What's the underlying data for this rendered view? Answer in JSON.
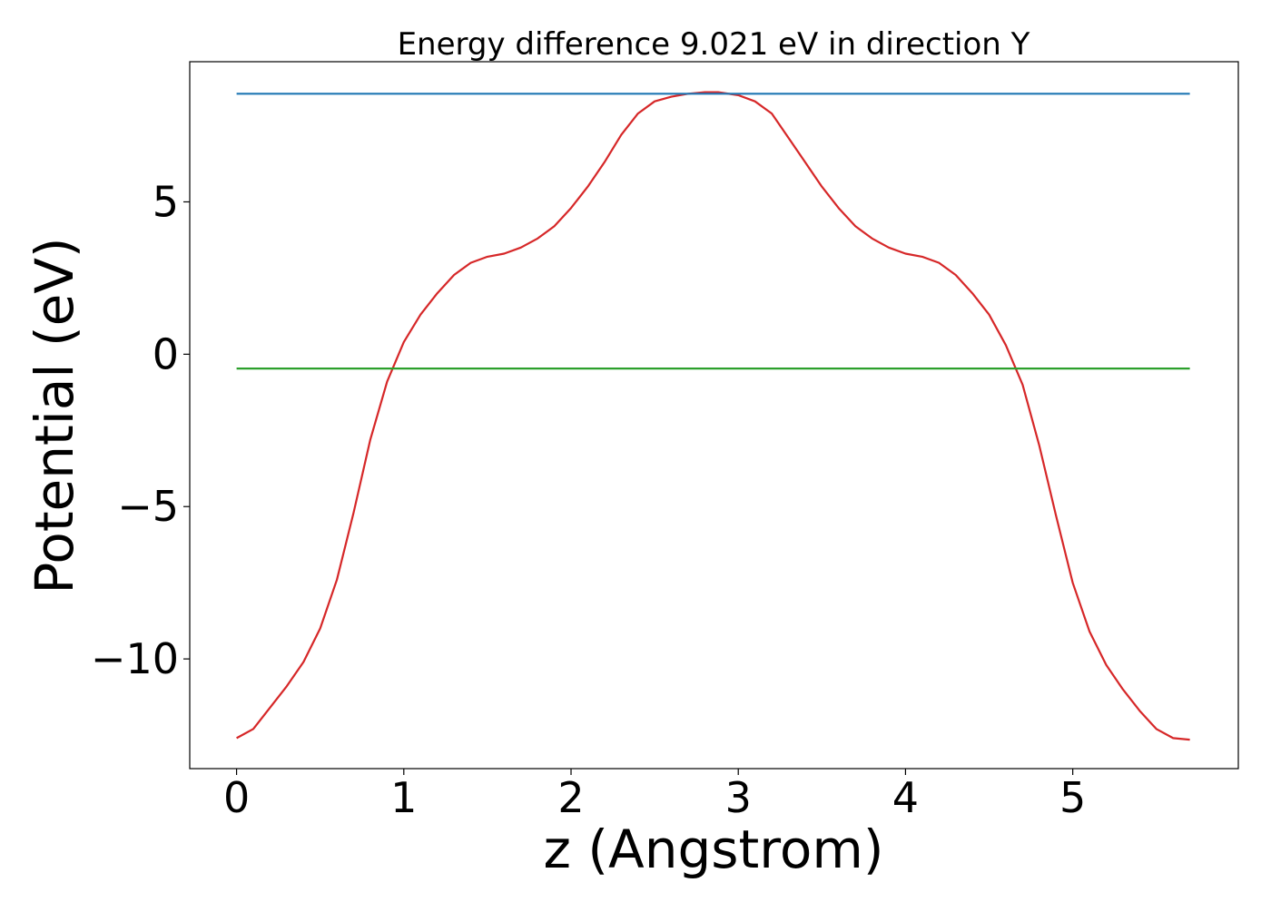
{
  "chart_data": {
    "type": "line",
    "title": "Energy difference 9.021 eV in direction Y",
    "xlabel": "z (Angstrom)",
    "ylabel": "Potential (eV)",
    "xlim": [
      -0.28,
      5.99
    ],
    "ylim": [
      -13.6,
      9.6
    ],
    "xticks": [
      0,
      1,
      2,
      3,
      4,
      5
    ],
    "xtick_labels": [
      "0",
      "1",
      "2",
      "3",
      "4",
      "5"
    ],
    "yticks": [
      -10,
      -5,
      0,
      5
    ],
    "ytick_labels": [
      "−10",
      "−5",
      "0",
      "5"
    ],
    "grid": false,
    "legend": "none",
    "series": [
      {
        "color": "#d62728",
        "x": [
          0,
          0.1,
          0.2,
          0.3,
          0.4,
          0.5,
          0.6,
          0.7,
          0.8,
          0.9,
          1.0,
          1.1,
          1.2,
          1.3,
          1.4,
          1.5,
          1.6,
          1.7,
          1.8,
          1.9,
          2.0,
          2.1,
          2.2,
          2.3,
          2.4,
          2.5,
          2.6,
          2.7,
          2.8,
          2.88,
          3.0,
          3.1,
          3.2,
          3.3,
          3.4,
          3.5,
          3.6,
          3.7,
          3.8,
          3.9,
          4.0,
          4.1,
          4.2,
          4.3,
          4.4,
          4.5,
          4.6,
          4.7,
          4.8,
          4.9,
          5.0,
          5.1,
          5.2,
          5.3,
          5.4,
          5.5,
          5.6,
          5.7
        ],
        "y": [
          -12.6,
          -12.3,
          -11.6,
          -10.9,
          -10.1,
          -9.0,
          -7.4,
          -5.2,
          -2.8,
          -0.9,
          0.4,
          1.3,
          2.0,
          2.6,
          3.0,
          3.2,
          3.3,
          3.5,
          3.8,
          4.2,
          4.8,
          5.5,
          6.3,
          7.2,
          7.9,
          8.3,
          8.45,
          8.55,
          8.6,
          8.6,
          8.5,
          8.3,
          7.9,
          7.1,
          6.3,
          5.5,
          4.8,
          4.2,
          3.8,
          3.5,
          3.3,
          3.2,
          3.0,
          2.6,
          2.0,
          1.3,
          0.3,
          -1.0,
          -3.0,
          -5.3,
          -7.5,
          -9.1,
          -10.2,
          -11.0,
          -11.7,
          -12.3,
          -12.6,
          -12.65
        ]
      },
      {
        "color": "#1f77b4",
        "x": [
          0,
          5.7
        ],
        "y": [
          8.55,
          8.55
        ]
      },
      {
        "color": "#2ca02c",
        "x": [
          0,
          5.7
        ],
        "y": [
          -0.47,
          -0.47
        ]
      }
    ]
  }
}
